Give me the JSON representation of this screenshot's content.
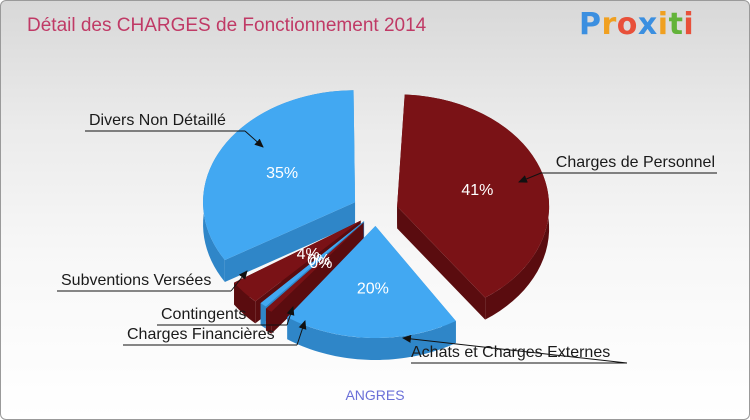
{
  "title": "Détail des CHARGES de Fonctionnement 2014",
  "logo": {
    "text": "Proxiti",
    "letters": [
      {
        "char": "P",
        "color": "#3b8fe0"
      },
      {
        "char": "r",
        "color": "#f0a020"
      },
      {
        "char": "o",
        "color": "#e8503a"
      },
      {
        "char": "x",
        "color": "#3b8fe0"
      },
      {
        "char": "i",
        "color": "#f0a020"
      },
      {
        "char": "t",
        "color": "#63b33a"
      },
      {
        "char": "i",
        "color": "#e8503a"
      }
    ]
  },
  "commune": "ANGRES",
  "colors": {
    "blue": "#42a8f2",
    "blue_side": "#2f86c8",
    "red": "#7a1216",
    "red_side": "#5a0c0f",
    "title": "#c03a66",
    "commune": "#6a6fd8"
  },
  "chart_data": {
    "type": "pie",
    "title": "Détail des CHARGES de Fonctionnement 2014",
    "series": [
      {
        "values": [
          41,
          20,
          0,
          0,
          4,
          35
        ],
        "labels": [
          "41%",
          "20%",
          "0%",
          "0%",
          "4%",
          "35%"
        ],
        "categories": [
          "Charges de Personnel",
          "Achats et Charges Externes",
          "Charges Financières",
          "Contingents",
          "Subventions Versées",
          "Divers Non Détaillé"
        ],
        "colors": [
          "#7a1216",
          "#42a8f2",
          "#7a1216",
          "#42a8f2",
          "#7a1216",
          "#42a8f2"
        ]
      }
    ]
  }
}
